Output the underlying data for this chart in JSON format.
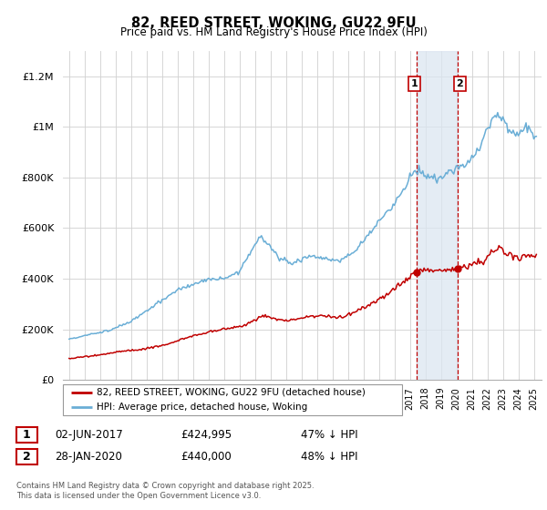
{
  "title": "82, REED STREET, WOKING, GU22 9FU",
  "subtitle": "Price paid vs. HM Land Registry's House Price Index (HPI)",
  "hpi_label": "HPI: Average price, detached house, Woking",
  "price_label": "82, REED STREET, WOKING, GU22 9FU (detached house)",
  "hpi_color": "#6aaed6",
  "price_color": "#c00000",
  "shade_color": "#dce6f1",
  "vline_color": "#c00000",
  "transaction1": {
    "label": "1",
    "date": "02-JUN-2017",
    "price": "£424,995",
    "pct": "47% ↓ HPI",
    "year": 2017.42
  },
  "transaction2": {
    "label": "2",
    "date": "28-JAN-2020",
    "price": "£440,000",
    "pct": "48% ↓ HPI",
    "year": 2020.08
  },
  "footer": "Contains HM Land Registry data © Crown copyright and database right 2025.\nThis data is licensed under the Open Government Licence v3.0.",
  "ylim": [
    0,
    1300000
  ],
  "yticks": [
    0,
    200000,
    400000,
    600000,
    800000,
    1000000,
    1200000
  ],
  "ytick_labels": [
    "£0",
    "£200K",
    "£400K",
    "£600K",
    "£800K",
    "£1M",
    "£1.2M"
  ],
  "xlim": [
    1994.6,
    2025.5
  ]
}
